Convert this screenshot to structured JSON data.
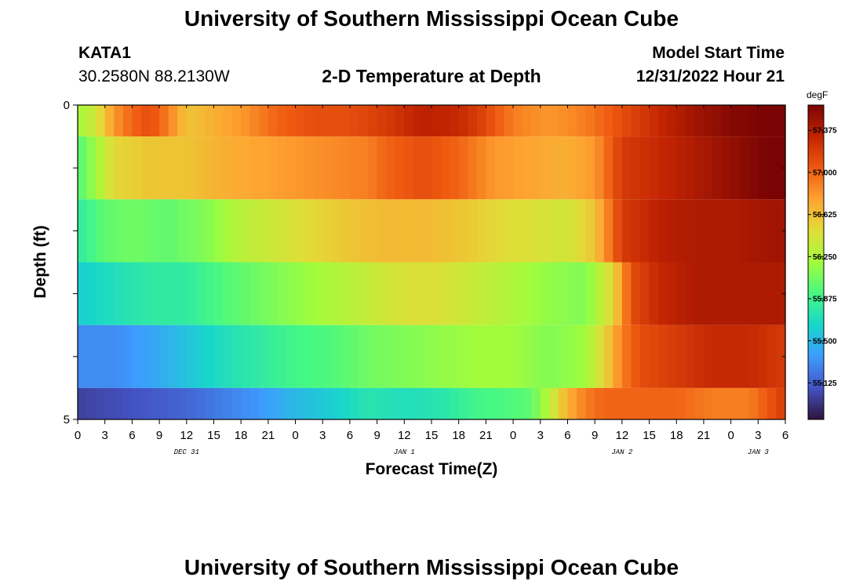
{
  "header": {
    "title": "University of Southern Mississippi Ocean Cube",
    "station": "KATA1",
    "coords": "30.2580N  88.2130W",
    "plot_title": "2-D Temperature at Depth",
    "model_start_label": "Model Start Time",
    "model_start_value": "12/31/2022 Hour 21"
  },
  "footer": {
    "title": "University of Southern Mississippi Ocean Cube"
  },
  "colors": [
    "#30123b",
    "#4454c4",
    "#3e9bfe",
    "#18d6cb",
    "#46f884",
    "#a2fc3c",
    "#e1dd37",
    "#fea331",
    "#ef5911",
    "#c22402",
    "#7a0403"
  ],
  "chart_data": {
    "type": "heatmap",
    "title": "2-D Temperature at Depth",
    "xlabel": "Forecast Time(Z)",
    "ylabel": "Depth (ft)",
    "zlabel": "degF",
    "xlim": [
      0,
      78
    ],
    "ylim": [
      0,
      5
    ],
    "zlim": [
      54.8,
      57.6
    ],
    "x_tick_labels": [
      "0",
      "3",
      "6",
      "9",
      "12",
      "15",
      "18",
      "21",
      "0",
      "3",
      "6",
      "9",
      "12",
      "15",
      "18",
      "21",
      "0",
      "3",
      "6",
      "9",
      "12",
      "15",
      "18",
      "21",
      "0",
      "3",
      "6"
    ],
    "y_tick_labels": [
      "0",
      "5"
    ],
    "day_labels": [
      {
        "text": "DEC 31",
        "x": 12
      },
      {
        "text": "JAN 1",
        "x": 36
      },
      {
        "text": "JAN 2",
        "x": 60
      },
      {
        "text": "JAN 3",
        "x": 75
      }
    ],
    "colorbar_ticks": [
      57.375,
      57.0,
      56.625,
      56.25,
      55.875,
      55.5,
      55.125
    ],
    "colorbar_tick_labels": [
      "57.375",
      "57.000",
      "56.625",
      "56.250",
      "55.875",
      "55.500",
      "55.125"
    ],
    "bands": [
      {
        "depth_ft": [
          0.0,
          0.5
        ],
        "anchors": [
          [
            0,
            56.2
          ],
          [
            2,
            56.4
          ],
          [
            4,
            56.8
          ],
          [
            6,
            57.0
          ],
          [
            8,
            57.1
          ],
          [
            10,
            56.9
          ],
          [
            12,
            56.6
          ],
          [
            15,
            56.7
          ],
          [
            18,
            56.8
          ],
          [
            22,
            57.0
          ],
          [
            26,
            57.1
          ],
          [
            30,
            57.1
          ],
          [
            34,
            57.2
          ],
          [
            38,
            57.35
          ],
          [
            42,
            57.3
          ],
          [
            44,
            57.2
          ],
          [
            48,
            56.9
          ],
          [
            52,
            56.8
          ],
          [
            56,
            56.9
          ],
          [
            60,
            57.1
          ],
          [
            64,
            57.3
          ],
          [
            68,
            57.45
          ],
          [
            72,
            57.55
          ],
          [
            76,
            57.6
          ],
          [
            78,
            57.6
          ]
        ]
      },
      {
        "depth_ft": [
          0.5,
          1.5
        ],
        "anchors": [
          [
            0,
            55.95
          ],
          [
            2,
            56.2
          ],
          [
            4,
            56.5
          ],
          [
            8,
            56.6
          ],
          [
            12,
            56.6
          ],
          [
            16,
            56.7
          ],
          [
            20,
            56.75
          ],
          [
            24,
            56.8
          ],
          [
            28,
            56.85
          ],
          [
            32,
            56.9
          ],
          [
            34,
            57.0
          ],
          [
            38,
            57.1
          ],
          [
            42,
            57.0
          ],
          [
            46,
            56.8
          ],
          [
            50,
            56.75
          ],
          [
            54,
            56.7
          ],
          [
            57,
            56.8
          ],
          [
            60,
            57.2
          ],
          [
            64,
            57.3
          ],
          [
            68,
            57.4
          ],
          [
            72,
            57.5
          ],
          [
            76,
            57.6
          ],
          [
            78,
            57.6
          ]
        ]
      },
      {
        "depth_ft": [
          1.5,
          2.5
        ],
        "anchors": [
          [
            0,
            55.8
          ],
          [
            3,
            56.0
          ],
          [
            6,
            56.05
          ],
          [
            10,
            56.0
          ],
          [
            14,
            56.1
          ],
          [
            18,
            56.3
          ],
          [
            22,
            56.4
          ],
          [
            26,
            56.5
          ],
          [
            30,
            56.6
          ],
          [
            34,
            56.65
          ],
          [
            38,
            56.65
          ],
          [
            42,
            56.6
          ],
          [
            46,
            56.5
          ],
          [
            50,
            56.45
          ],
          [
            54,
            56.4
          ],
          [
            57,
            56.6
          ],
          [
            60,
            57.2
          ],
          [
            64,
            57.35
          ],
          [
            68,
            57.4
          ],
          [
            72,
            57.4
          ],
          [
            76,
            57.45
          ],
          [
            78,
            57.45
          ]
        ]
      },
      {
        "depth_ft": [
          2.5,
          3.5
        ],
        "anchors": [
          [
            0,
            55.6
          ],
          [
            4,
            55.7
          ],
          [
            8,
            55.8
          ],
          [
            12,
            55.8
          ],
          [
            16,
            55.95
          ],
          [
            20,
            56.05
          ],
          [
            24,
            56.15
          ],
          [
            28,
            56.25
          ],
          [
            32,
            56.35
          ],
          [
            36,
            56.45
          ],
          [
            40,
            56.45
          ],
          [
            44,
            56.35
          ],
          [
            48,
            56.25
          ],
          [
            52,
            56.15
          ],
          [
            56,
            56.1
          ],
          [
            59,
            56.5
          ],
          [
            61,
            57.1
          ],
          [
            64,
            57.3
          ],
          [
            68,
            57.4
          ],
          [
            72,
            57.4
          ],
          [
            78,
            57.4
          ]
        ]
      },
      {
        "depth_ft": [
          3.5,
          4.5
        ],
        "anchors": [
          [
            0,
            55.3
          ],
          [
            4,
            55.3
          ],
          [
            8,
            55.4
          ],
          [
            12,
            55.55
          ],
          [
            16,
            55.7
          ],
          [
            20,
            55.8
          ],
          [
            24,
            55.9
          ],
          [
            28,
            55.95
          ],
          [
            32,
            56.05
          ],
          [
            36,
            56.1
          ],
          [
            40,
            56.15
          ],
          [
            44,
            56.2
          ],
          [
            48,
            56.2
          ],
          [
            52,
            56.1
          ],
          [
            56,
            56.2
          ],
          [
            58,
            56.5
          ],
          [
            60,
            56.9
          ],
          [
            62,
            57.1
          ],
          [
            66,
            57.2
          ],
          [
            70,
            57.3
          ],
          [
            74,
            57.3
          ],
          [
            78,
            57.2
          ]
        ]
      },
      {
        "depth_ft": [
          4.5,
          5.0
        ],
        "anchors": [
          [
            0,
            55.0
          ],
          [
            4,
            55.05
          ],
          [
            8,
            55.1
          ],
          [
            12,
            55.15
          ],
          [
            16,
            55.25
          ],
          [
            20,
            55.35
          ],
          [
            24,
            55.5
          ],
          [
            28,
            55.6
          ],
          [
            32,
            55.75
          ],
          [
            36,
            55.7
          ],
          [
            40,
            55.75
          ],
          [
            44,
            55.9
          ],
          [
            48,
            55.95
          ],
          [
            50,
            56.0
          ],
          [
            52,
            56.3
          ],
          [
            54,
            56.7
          ],
          [
            56,
            56.9
          ],
          [
            58,
            57.0
          ],
          [
            62,
            57.0
          ],
          [
            66,
            57.0
          ],
          [
            70,
            56.9
          ],
          [
            74,
            56.9
          ],
          [
            78,
            57.2
          ]
        ]
      }
    ]
  }
}
